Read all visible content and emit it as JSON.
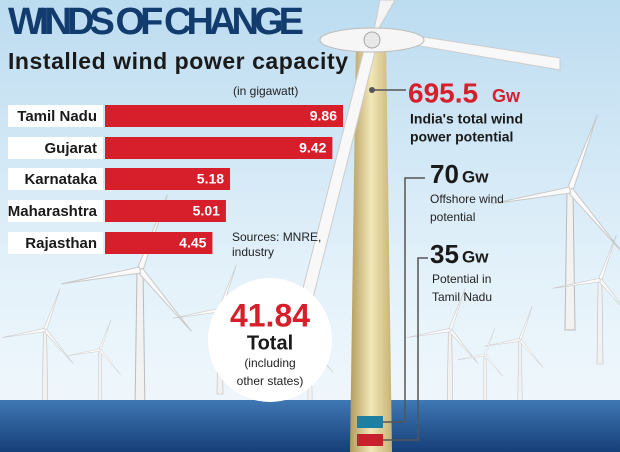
{
  "chart_data": {
    "type": "hbar",
    "title": "WINDS OF CHANGE",
    "subtitle": "Installed wind power capacity",
    "unit": "(in gigawatt)",
    "categories": [
      "Tamil Nadu",
      "Gujarat",
      "Karnataka",
      "Maharashtra",
      "Rajasthan"
    ],
    "values": [
      9.86,
      9.42,
      5.18,
      5.01,
      4.45
    ],
    "color": "#d71f2b",
    "source": [
      "Sources: MNRE,",
      "industry"
    ],
    "annotations": {
      "potential": {
        "value": 695.5,
        "unit": "Gw",
        "text": [
          "India's total wind",
          "power potential"
        ]
      },
      "offshore": {
        "value": 70,
        "unit": "Gw",
        "text": [
          "Offshore wind",
          "potential"
        ]
      },
      "tamil_nadu": {
        "value": 35,
        "unit": "Gw",
        "text": [
          "Potential in",
          "Tamil Nadu"
        ]
      },
      "total": {
        "value": 41.84,
        "label": "Total",
        "text": [
          "(including",
          "other states)"
        ]
      }
    }
  }
}
